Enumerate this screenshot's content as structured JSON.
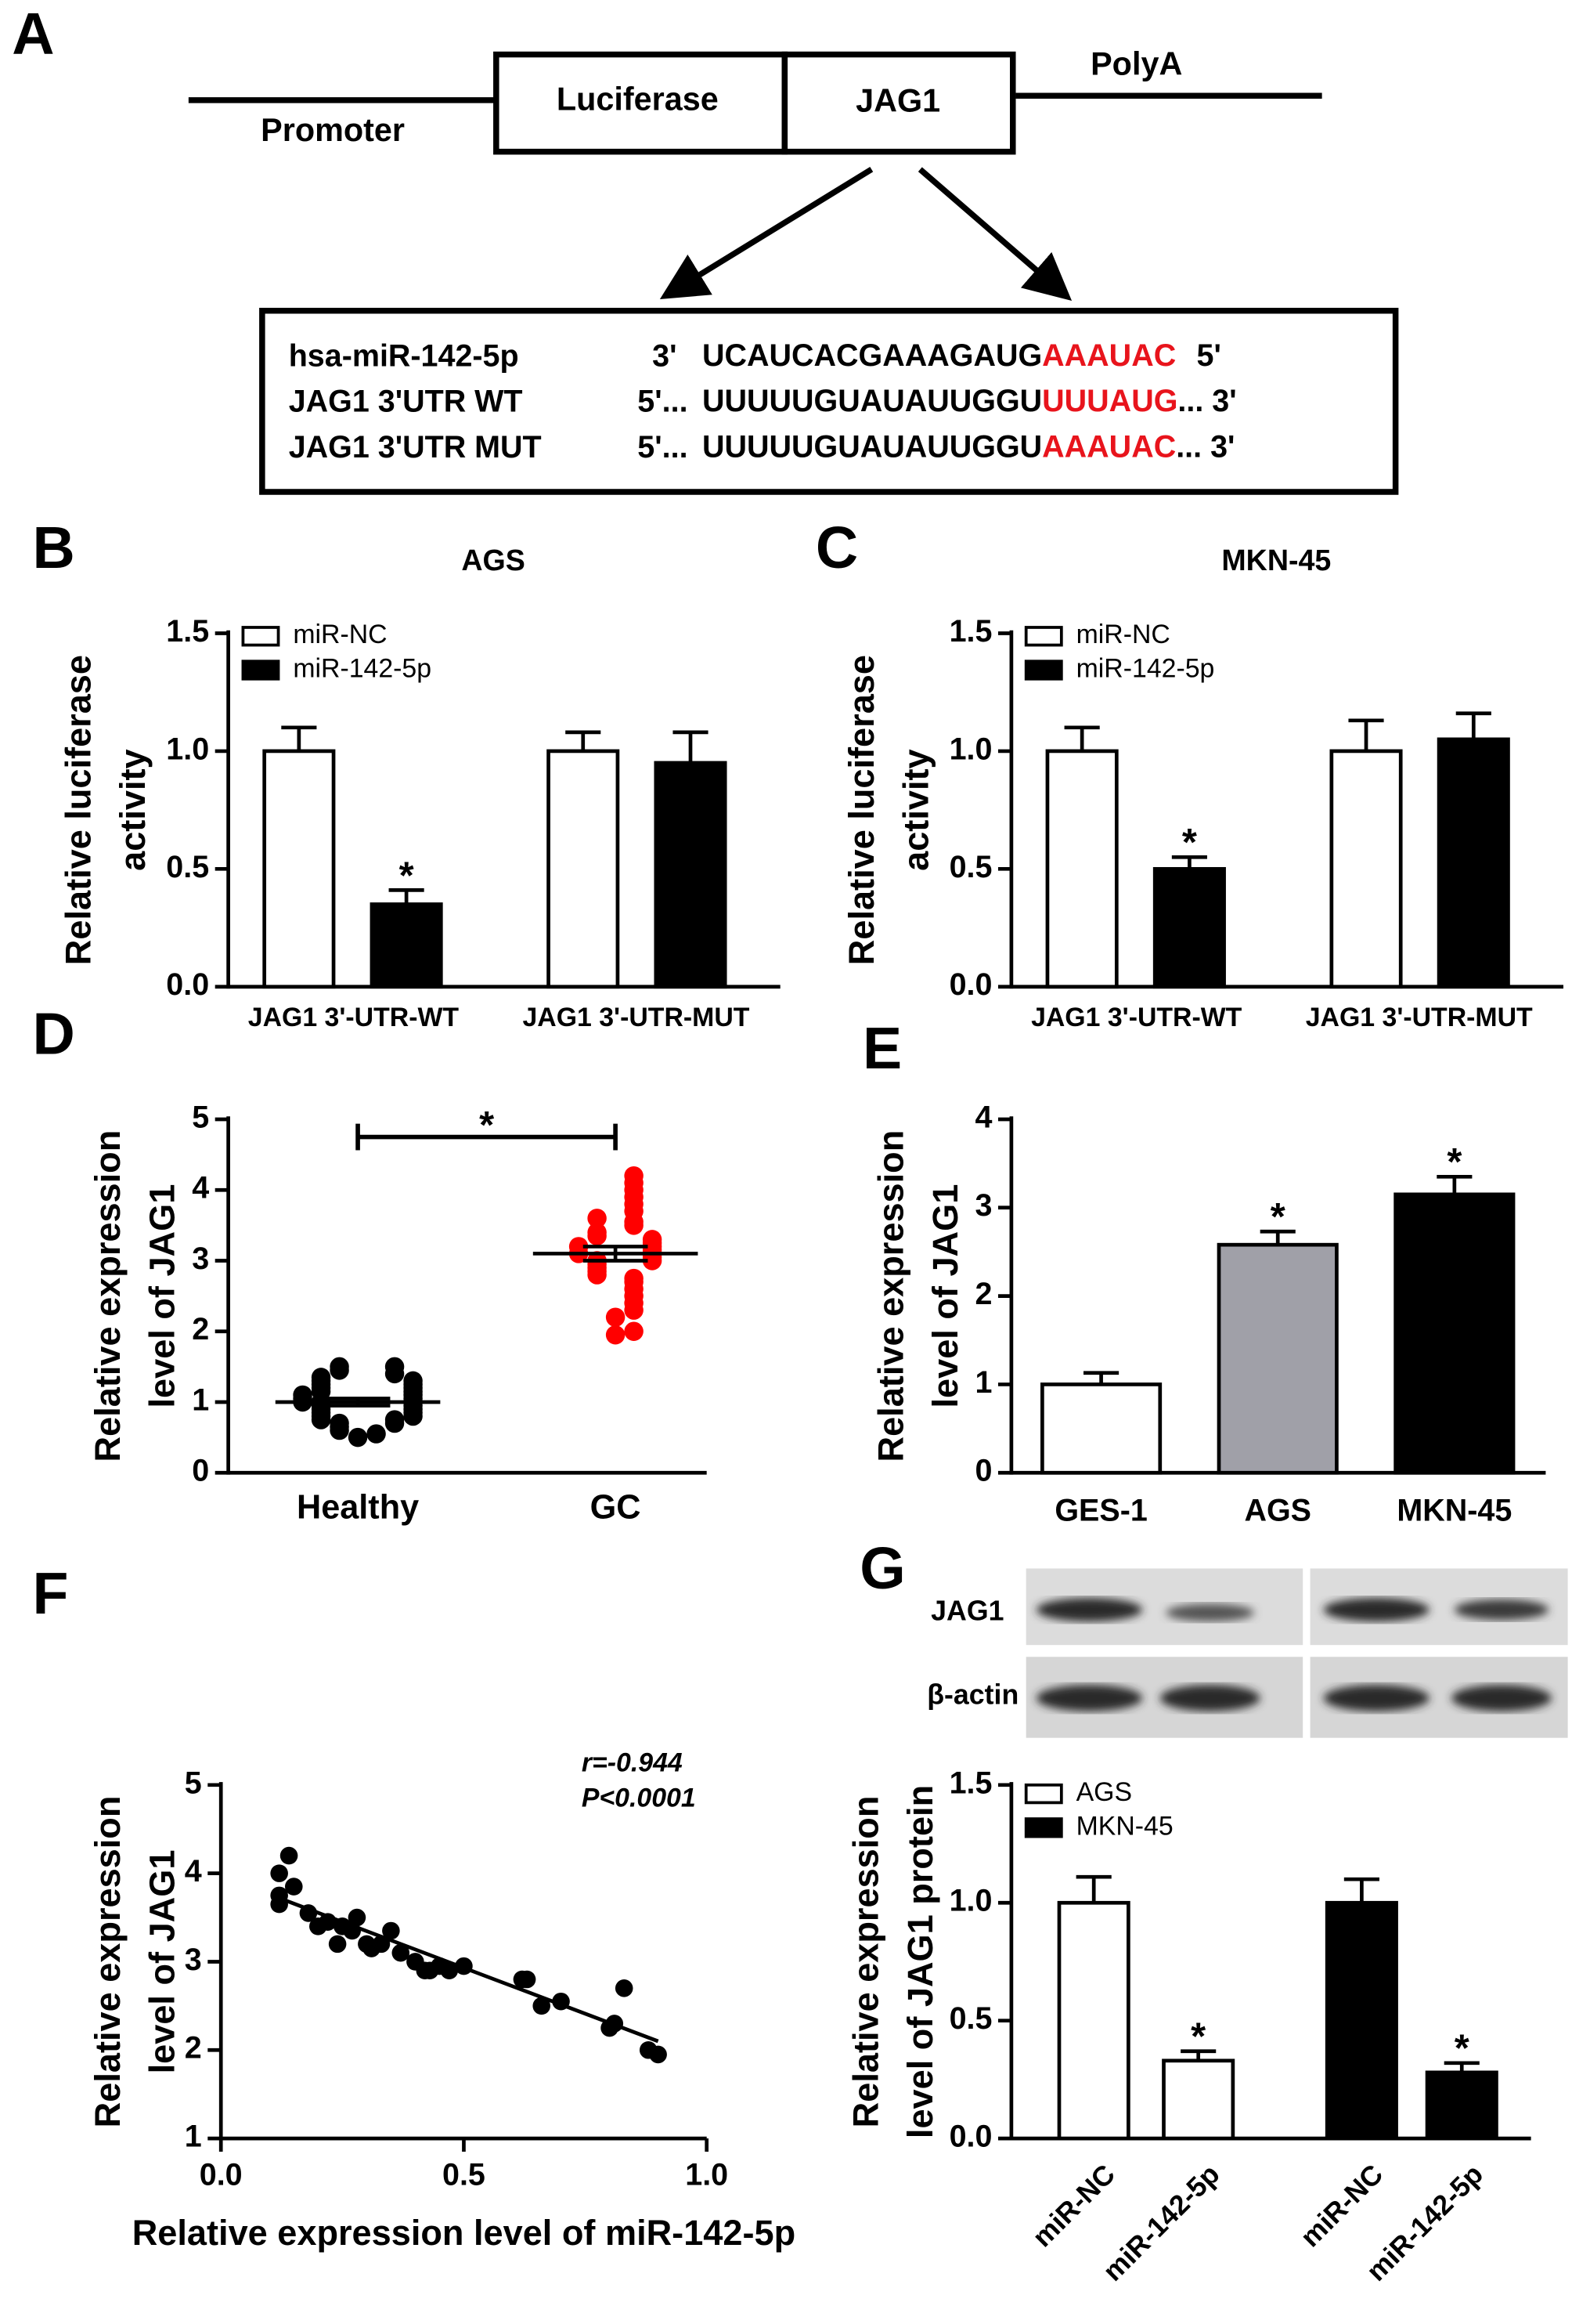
{
  "diagram": {
    "panel": "A",
    "promoter": "Promoter",
    "luciferase": "Luciferase",
    "jag1": "JAG1",
    "polya": "PolyA",
    "sequences": [
      {
        "name": "hsa-miR-142-5p",
        "left": "3'",
        "seq": "UCAUCACGAAAGAUG",
        "site": "AAAUAC",
        "right": "5'"
      },
      {
        "name": "JAG1 3'UTR WT",
        "left": "5'...",
        "seq": "UUUUUGUAUAUUGGU",
        "site": "UUUAUG",
        "right": "... 3'"
      },
      {
        "name": "JAG1 3'UTR MUT",
        "left": "5'...",
        "seq": "UUUUUGUAUAUUGGU",
        "site": "AAAUAC",
        "right": "... 3'"
      }
    ]
  },
  "chart_data": [
    {
      "type": "bar",
      "panel": "B",
      "title": "AGS",
      "ylabel": [
        "Relative  luciferase",
        "activity"
      ],
      "categories": [
        "JAG1 3'-UTR-WT",
        "JAG1 3'-UTR-MUT"
      ],
      "series": [
        {
          "name": "miR-NC",
          "color": "#ffffff",
          "values": [
            1.0,
            1.0
          ],
          "errors": [
            0.1,
            0.08
          ],
          "annotations": [
            null,
            null
          ]
        },
        {
          "name": "miR-142-5p",
          "color": "#000000",
          "values": [
            0.35,
            0.95
          ],
          "errors": [
            0.06,
            0.13
          ],
          "annotations": [
            "*",
            null
          ]
        }
      ],
      "ylim": [
        0,
        1.5
      ],
      "yticks": [
        {
          "value": 0,
          "label": "0.0"
        },
        0.5,
        {
          "value": 1,
          "label": "1.0"
        },
        1.5
      ],
      "legend": "upper left"
    },
    {
      "type": "bar",
      "panel": "C",
      "title": "MKN-45",
      "ylabel": [
        "Relative  luciferase",
        "activity"
      ],
      "categories": [
        "JAG1 3'-UTR-WT",
        "JAG1 3'-UTR-MUT"
      ],
      "series": [
        {
          "name": "miR-NC",
          "color": "#ffffff",
          "values": [
            1.0,
            1.0
          ],
          "errors": [
            0.1,
            0.13
          ],
          "annotations": [
            null,
            null
          ]
        },
        {
          "name": "miR-142-5p",
          "color": "#000000",
          "values": [
            0.5,
            1.05
          ],
          "errors": [
            0.05,
            0.11
          ],
          "annotations": [
            "*",
            null
          ]
        }
      ],
      "ylim": [
        0,
        1.5
      ],
      "yticks": [
        {
          "value": 0,
          "label": "0.0"
        },
        0.5,
        {
          "value": 1,
          "label": "1.0"
        },
        1.5
      ],
      "legend": "upper left"
    },
    {
      "type": "strip",
      "panel": "D",
      "ylabel": [
        "Relative expression",
        "level of JAG1"
      ],
      "categories": [
        "Healthy",
        "GC"
      ],
      "groups": [
        {
          "color": "#000000",
          "mean": 1.0,
          "sem": 0.05,
          "values": [
            0.5,
            0.55,
            0.6,
            0.65,
            0.7,
            0.7,
            0.75,
            0.75,
            0.8,
            0.8,
            0.85,
            0.85,
            0.9,
            0.9,
            0.95,
            0.95,
            1.0,
            1.0,
            1.0,
            1.05,
            1.05,
            1.1,
            1.1,
            1.15,
            1.15,
            1.2,
            1.2,
            1.25,
            1.25,
            1.3,
            1.3,
            1.35,
            1.4,
            1.45,
            1.5,
            1.5
          ]
        },
        {
          "color": "#ff0000",
          "mean": 3.1,
          "sem": 0.1,
          "values": [
            1.95,
            2.0,
            2.2,
            2.3,
            2.4,
            2.5,
            2.6,
            2.7,
            2.75,
            2.8,
            2.85,
            2.9,
            2.95,
            3.0,
            3.0,
            3.05,
            3.1,
            3.1,
            3.15,
            3.2,
            3.2,
            3.25,
            3.3,
            3.35,
            3.4,
            3.5,
            3.55,
            3.6,
            3.7,
            3.8,
            3.9,
            4.0,
            4.1,
            4.2
          ]
        }
      ],
      "ylim": [
        0,
        5
      ],
      "yticks": [
        0,
        1,
        2,
        3,
        4,
        5
      ],
      "bracket": "*"
    },
    {
      "type": "bar",
      "panel": "E",
      "ylabel": [
        "Relative expression",
        "level of JAG1"
      ],
      "categories": [
        "GES-1",
        "AGS",
        "MKN-45"
      ],
      "colors": [
        "#ffffff",
        "#a0a0a8",
        "#000000"
      ],
      "series": [
        {
          "values": [
            1.0,
            2.58,
            3.15
          ],
          "errors": [
            0.13,
            0.15,
            0.2
          ],
          "annotations": [
            null,
            "*",
            "*"
          ]
        }
      ],
      "ylim": [
        0,
        4
      ],
      "yticks": [
        0,
        1,
        2,
        3,
        4
      ]
    },
    {
      "type": "scatter",
      "panel": "F",
      "ylabel": [
        "Relative expression",
        "level of JAG1"
      ],
      "xlabel": "Relative expression level of miR-142-5p",
      "x": [
        0.12,
        0.12,
        0.12,
        0.14,
        0.15,
        0.18,
        0.2,
        0.22,
        0.24,
        0.25,
        0.27,
        0.28,
        0.3,
        0.31,
        0.33,
        0.35,
        0.37,
        0.4,
        0.42,
        0.43,
        0.45,
        0.47,
        0.5,
        0.62,
        0.63,
        0.66,
        0.7,
        0.8,
        0.81,
        0.83,
        0.88,
        0.9
      ],
      "y": [
        4.0,
        3.75,
        3.65,
        4.2,
        3.85,
        3.55,
        3.4,
        3.45,
        3.2,
        3.4,
        3.35,
        3.5,
        3.2,
        3.15,
        3.2,
        3.35,
        3.1,
        3.0,
        2.9,
        2.9,
        2.95,
        2.9,
        2.95,
        2.8,
        2.8,
        2.5,
        2.55,
        2.25,
        2.3,
        2.7,
        2.0,
        1.95
      ],
      "fit": {
        "x": [
          0.12,
          0.9
        ],
        "y": [
          3.72,
          2.1
        ]
      },
      "annotations": [
        "r=-0.944",
        "P<0.0001"
      ],
      "xlim": [
        0,
        1
      ],
      "xticks": [
        {
          "value": 0,
          "label": "0.0"
        },
        0.5,
        {
          "value": 1,
          "label": "1.0"
        }
      ],
      "ylim": [
        1,
        5
      ],
      "yticks": [
        1,
        2,
        3,
        4,
        5
      ]
    },
    {
      "type": "bar",
      "panel": "G",
      "ylabel": [
        "Relative expression",
        "level of JAG1 protein"
      ],
      "blot_labels": [
        "JAG1",
        "β-actin"
      ],
      "categories": [
        "miR-NC",
        "miR-142-5p",
        "miR-NC",
        "miR-142-5p"
      ],
      "series": [
        {
          "name": "AGS",
          "color": "#ffffff",
          "values": [
            1.0,
            0.33,
            null,
            null
          ],
          "errors": [
            0.11,
            0.04,
            null,
            null
          ],
          "annotations": [
            null,
            "*",
            null,
            null
          ]
        },
        {
          "name": "MKN-45",
          "color": "#000000",
          "values": [
            null,
            null,
            1.0,
            0.28
          ],
          "errors": [
            null,
            null,
            0.1,
            0.04
          ],
          "annotations": [
            null,
            null,
            null,
            "*"
          ]
        }
      ],
      "ylim": [
        0,
        1.5
      ],
      "yticks": [
        {
          "value": 0,
          "label": "0.0"
        },
        0.5,
        {
          "value": 1,
          "label": "1.0"
        },
        1.5
      ],
      "legend": "upper left"
    }
  ]
}
